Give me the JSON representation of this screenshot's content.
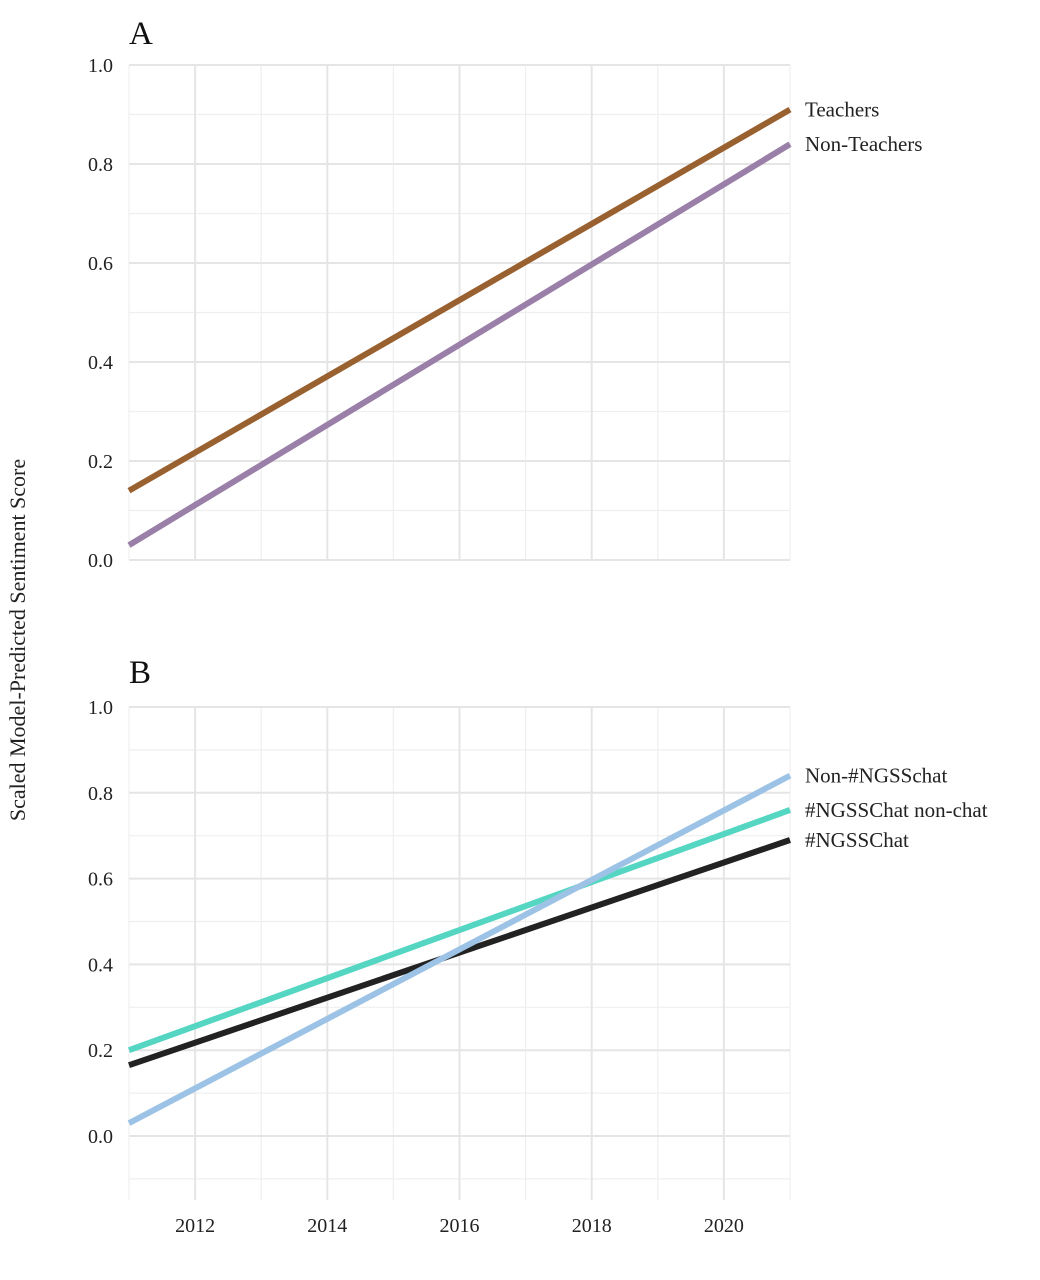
{
  "ylabel": "Scaled Model-Predicted Sentiment Score",
  "chart_data": [
    {
      "type": "line",
      "panel_label": "A",
      "xlim": [
        2011,
        2021
      ],
      "ylim": [
        0.0,
        1.0
      ],
      "xticks": [
        "2012",
        "2014",
        "2016",
        "2018",
        "2020"
      ],
      "yticks": [
        "0.0",
        "0.2",
        "0.4",
        "0.6",
        "0.8",
        "1.0"
      ],
      "grid": true,
      "legend": "direct labels at line ends (right)",
      "series": [
        {
          "name": "Teachers",
          "color": "#9a6130",
          "x": [
            2011,
            2021
          ],
          "y": [
            0.14,
            0.91
          ]
        },
        {
          "name": "Non-Teachers",
          "color": "#9a7fa8",
          "x": [
            2011,
            2021
          ],
          "y": [
            0.03,
            0.84
          ]
        }
      ]
    },
    {
      "type": "line",
      "panel_label": "B",
      "xlim": [
        2011,
        2021
      ],
      "ylim": [
        -0.15,
        1.0
      ],
      "xticks": [
        "2012",
        "2014",
        "2016",
        "2018",
        "2020"
      ],
      "yticks": [
        "0.0",
        "0.2",
        "0.4",
        "0.6",
        "0.8",
        "1.0"
      ],
      "grid": true,
      "legend": "direct labels at line ends (right)",
      "series": [
        {
          "name": "Non-#NGSSchat",
          "color": "#9cc3e6",
          "x": [
            2011,
            2021
          ],
          "y": [
            0.03,
            0.84
          ]
        },
        {
          "name": "#NGSSChat non-chat",
          "color": "#55d6c2",
          "x": [
            2011,
            2021
          ],
          "y": [
            0.2,
            0.76
          ]
        },
        {
          "name": "#NGSSChat",
          "color": "#222222",
          "x": [
            2011,
            2021
          ],
          "y": [
            0.165,
            0.69
          ]
        }
      ]
    }
  ]
}
